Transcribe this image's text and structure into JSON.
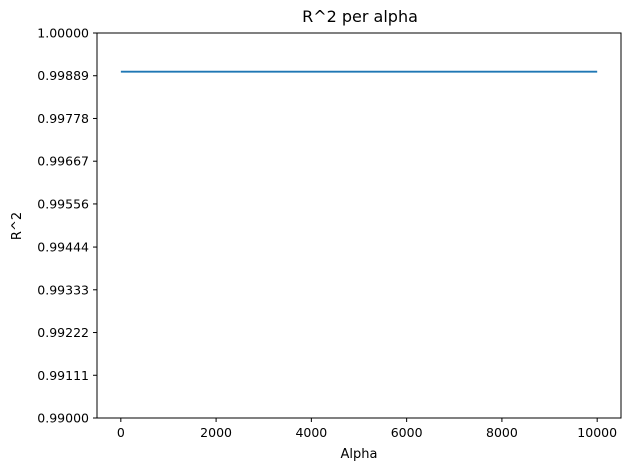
{
  "chart_data": {
    "type": "line",
    "title": "R^2 per alpha",
    "xlabel": "Alpha",
    "ylabel": "R^2",
    "xlim": [
      -500,
      10500
    ],
    "ylim": [
      0.99,
      1.0
    ],
    "xticks": [
      0,
      2000,
      4000,
      6000,
      8000,
      10000
    ],
    "xtick_labels": [
      "0",
      "2000",
      "4000",
      "6000",
      "8000",
      "10000"
    ],
    "yticks": [
      0.99,
      0.99111,
      0.99222,
      0.99333,
      0.99444,
      0.99556,
      0.99667,
      0.99778,
      0.99889,
      1.0
    ],
    "ytick_labels": [
      "0.99000",
      "0.99111",
      "0.99222",
      "0.99333",
      "0.99444",
      "0.99556",
      "0.99667",
      "0.99778",
      "0.99889",
      "1.00000"
    ],
    "grid": false,
    "series": [
      {
        "color": "#1f77b4",
        "x": [
          1,
          10000
        ],
        "y": [
          0.998995,
          0.998995
        ]
      }
    ]
  }
}
